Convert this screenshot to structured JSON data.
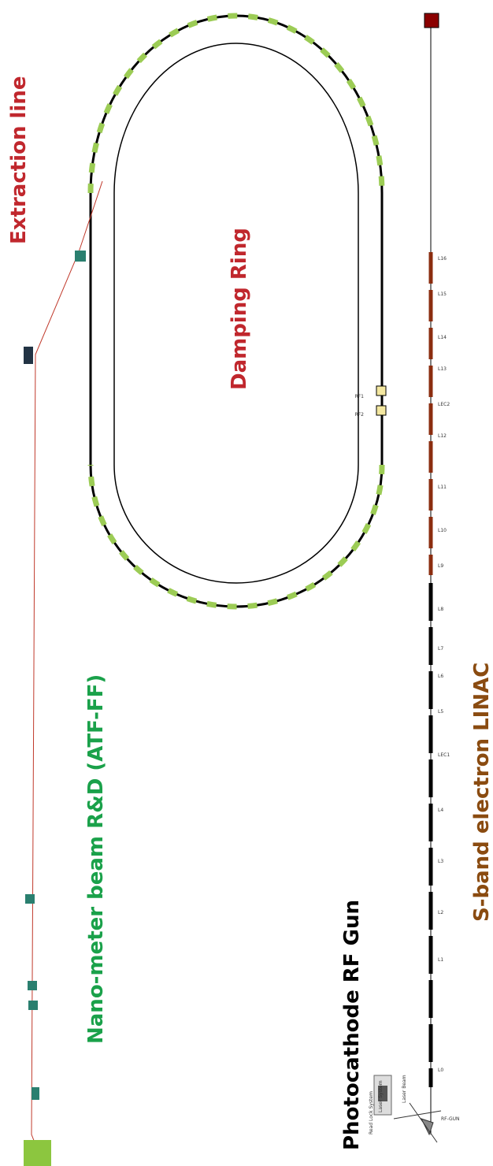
{
  "sections": {
    "extraction": "Extraction line",
    "ring": "Damping Ring",
    "ff": "Nano-meter beam R&D (ATF-FF)",
    "linac": "S-band electron LINAC",
    "gun": "Photocathode RF Gun"
  },
  "linac_labels": [
    "L16",
    "L15",
    "L14",
    "L13",
    "LEC2",
    "L12",
    "L11",
    "L10",
    "L9",
    "L8",
    "L7",
    "L6",
    "L5",
    "LEC1",
    "L4",
    "L3",
    "L2",
    "L1",
    "L0"
  ],
  "ring_labels": [
    "RF1",
    "RF2"
  ],
  "gun_labels": [
    "RF-GUN",
    "Laser Beam",
    "Laser System",
    "Read Lock System"
  ]
}
